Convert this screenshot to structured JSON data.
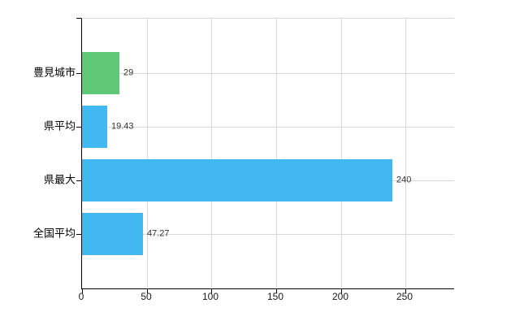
{
  "chart_data": {
    "type": "bar",
    "orientation": "horizontal",
    "categories": [
      "豊見城市",
      "県平均",
      "県最大",
      "全国平均"
    ],
    "values": [
      29,
      19.43,
      240,
      47.27
    ],
    "value_labels": [
      "29",
      "19.43",
      "240",
      "47.27"
    ],
    "bar_colors": [
      "#5fc877",
      "#41b9f0",
      "#41b9f0",
      "#41b9f0"
    ],
    "x_ticks": [
      0,
      50,
      100,
      150,
      200,
      250
    ],
    "x_tick_labels": [
      "0",
      "50",
      "100",
      "150",
      "200",
      "250"
    ],
    "xlim": [
      0,
      287.5
    ],
    "grid": true,
    "legend_position": "none"
  },
  "colors": {
    "highlight_bar": "#5fc877",
    "default_bar": "#41b9f0",
    "gridline": "#d9d9d9",
    "axis": "#000000",
    "category_text": "#000000",
    "value_text": "#333333",
    "background": "#ffffff"
  }
}
